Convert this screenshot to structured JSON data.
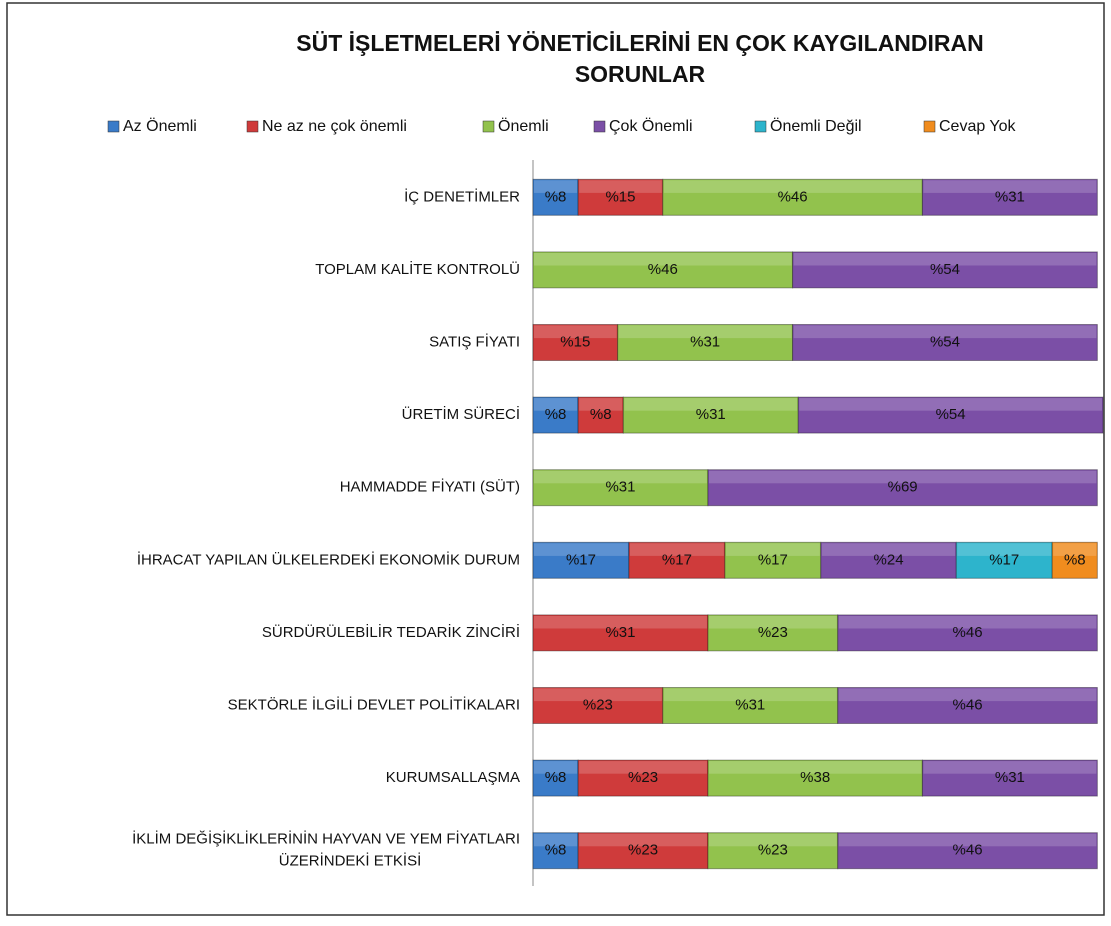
{
  "chart_data": {
    "type": "stacked-bar-horizontal",
    "title": "SÜT İŞLETMELERİ YÖNETİCİLERİNİ EN ÇOK KAYGILANDIRAN\nSORUNLAR",
    "categories": [
      "İÇ DENETİMLER",
      "TOPLAM KALİTE KONTROLÜ",
      "SATIŞ FİYATI",
      "ÜRETİM SÜRECİ",
      "HAMMADDE FİYATI (SÜT)",
      "İHRACAT YAPILAN ÜLKELERDEKİ EKONOMİK DURUM",
      "SÜRDÜRÜLEBİLİR TEDARİK ZİNCİRİ",
      "SEKTÖRLE İLGİLİ DEVLET POLİTİKALARI",
      "KURUMSALLAŞMA",
      "İKLİM DEĞİŞİKLİKLERİNİN HAYVAN VE YEM FİYATLARI\nÜZERİNDEKİ ETKİSİ"
    ],
    "series": [
      {
        "name": "Az Önemli",
        "color": "#3a7bc8",
        "values": [
          8,
          null,
          null,
          8,
          null,
          17,
          null,
          null,
          8,
          8
        ],
        "value_labels": [
          "%8",
          null,
          null,
          "%8",
          null,
          "%17",
          null,
          null,
          "%8",
          "%8"
        ]
      },
      {
        "name": "Ne az ne çok önemli",
        "color": "#cf3b3b",
        "values": [
          15,
          null,
          15,
          8,
          null,
          17,
          31,
          23,
          23,
          23
        ],
        "value_labels": [
          "%15",
          null,
          "%15",
          "%8",
          null,
          "%17",
          "%31",
          "%23",
          "%23",
          "%23"
        ]
      },
      {
        "name": "Önemli",
        "color": "#92c24d",
        "values": [
          46,
          46,
          31,
          31,
          31,
          17,
          23,
          31,
          38,
          23
        ],
        "value_labels": [
          "%46",
          "%46",
          "%31",
          "%31",
          "%31",
          "%17",
          "%23",
          "%31",
          "%38",
          "%23"
        ]
      },
      {
        "name": "Çok Önemli",
        "color": "#7b4fa6",
        "values": [
          31,
          54,
          54,
          54,
          69,
          24,
          46,
          46,
          31,
          46
        ],
        "value_labels": [
          "%31",
          "%54",
          "%54",
          "%54",
          "%69",
          "%24",
          "%46",
          "%46",
          "%31",
          "%46"
        ]
      },
      {
        "name": "Önemli Değil",
        "color": "#2db4cc",
        "values": [
          null,
          null,
          null,
          null,
          null,
          17,
          null,
          null,
          null,
          null
        ],
        "value_labels": [
          null,
          null,
          null,
          null,
          null,
          "%17",
          null,
          null,
          null,
          null
        ]
      },
      {
        "name": "Cevap Yok",
        "color": "#f08c1e",
        "values": [
          null,
          null,
          null,
          null,
          null,
          8,
          null,
          null,
          null,
          null
        ],
        "value_labels": [
          null,
          null,
          null,
          null,
          null,
          "%8",
          null,
          null,
          null,
          null
        ]
      }
    ]
  }
}
